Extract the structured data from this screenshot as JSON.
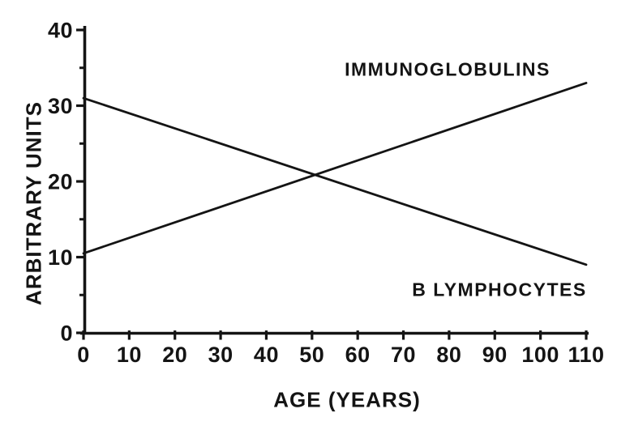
{
  "figure": {
    "background": "#ffffff",
    "ink_color": "#141414"
  },
  "chart_data": {
    "type": "line",
    "title": "",
    "xlabel": "AGE (YEARS)",
    "ylabel": "ARBITRARY UNITS",
    "xlim": [
      0,
      110
    ],
    "ylim": [
      0,
      40
    ],
    "x_ticks": [
      0,
      10,
      20,
      30,
      40,
      50,
      60,
      70,
      80,
      90,
      100,
      110
    ],
    "y_major_ticks": [
      0,
      10,
      20,
      30,
      40
    ],
    "y_minor_ticks": [
      5,
      15,
      25,
      35
    ],
    "grid": false,
    "legend_position": "inline-annotations",
    "series": [
      {
        "name": "IMMUNOGLOBULINS",
        "x": [
          0,
          110
        ],
        "y": [
          10.5,
          33
        ],
        "trend": "rising"
      },
      {
        "name": "B LYMPHOCYTES",
        "x": [
          0,
          110
        ],
        "y": [
          31,
          9
        ],
        "trend": "falling"
      }
    ]
  }
}
